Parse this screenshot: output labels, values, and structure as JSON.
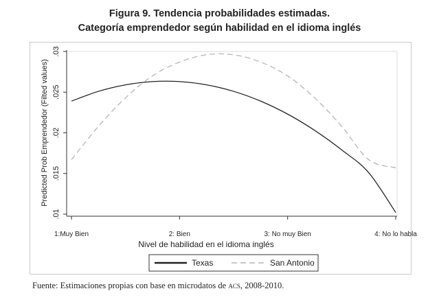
{
  "title_line1": "Figura 9. Tendencia probabilidades estimadas.",
  "title_line2": "Categoría emprendedor según habilidad en el idioma inglés",
  "source": {
    "prefix": "Fuente: Estimaciones propias con base en microdatos de ",
    "acronym": "acs",
    "suffix": ", 2008-2010."
  },
  "colors": {
    "texas": "#222222",
    "san_antonio": "#b5b5b5",
    "frame": "#c8c8c8"
  },
  "chart_data": {
    "type": "line",
    "title": "",
    "xlabel": "Nivel de habilidad en el idioma inglés",
    "ylabel": "Predicted Prob Emprendedor (Filted values)",
    "x_ticks": [
      {
        "value": 1,
        "label": "1:Muy Bien"
      },
      {
        "value": 2,
        "label": "2: Bien"
      },
      {
        "value": 3,
        "label": "3: No muy Bien"
      },
      {
        "value": 4,
        "label": "4: No lo habla"
      }
    ],
    "y_ticks": [
      {
        "value": 0.01,
        "label": ".01"
      },
      {
        "value": 0.015,
        "label": ".015"
      },
      {
        "value": 0.02,
        "label": ".02"
      },
      {
        "value": 0.025,
        "label": ".025"
      },
      {
        "value": 0.03,
        "label": ".03"
      }
    ],
    "xlim": [
      1,
      4
    ],
    "ylim": [
      0.01,
      0.03
    ],
    "grid": false,
    "legend_position": "bottom",
    "series": [
      {
        "name": "Texas",
        "style": "solid",
        "x": [
          1.0,
          1.25,
          1.5,
          1.75,
          2.0,
          2.25,
          2.5,
          2.75,
          3.0,
          3.25,
          3.5,
          3.75,
          4.0
        ],
        "y": [
          0.0239,
          0.0251,
          0.0259,
          0.0263,
          0.0263,
          0.0259,
          0.0251,
          0.0239,
          0.0223,
          0.0203,
          0.0179,
          0.0151,
          0.0102
        ]
      },
      {
        "name": "San Antonio",
        "style": "dashed",
        "x": [
          1.0,
          1.25,
          1.5,
          1.75,
          2.0,
          2.25,
          2.5,
          2.75,
          3.0,
          3.25,
          3.5,
          3.75,
          4.0
        ],
        "y": [
          0.0167,
          0.0208,
          0.0243,
          0.027,
          0.0287,
          0.0296,
          0.0296,
          0.0287,
          0.027,
          0.0243,
          0.0208,
          0.0167,
          0.0157
        ]
      }
    ]
  }
}
